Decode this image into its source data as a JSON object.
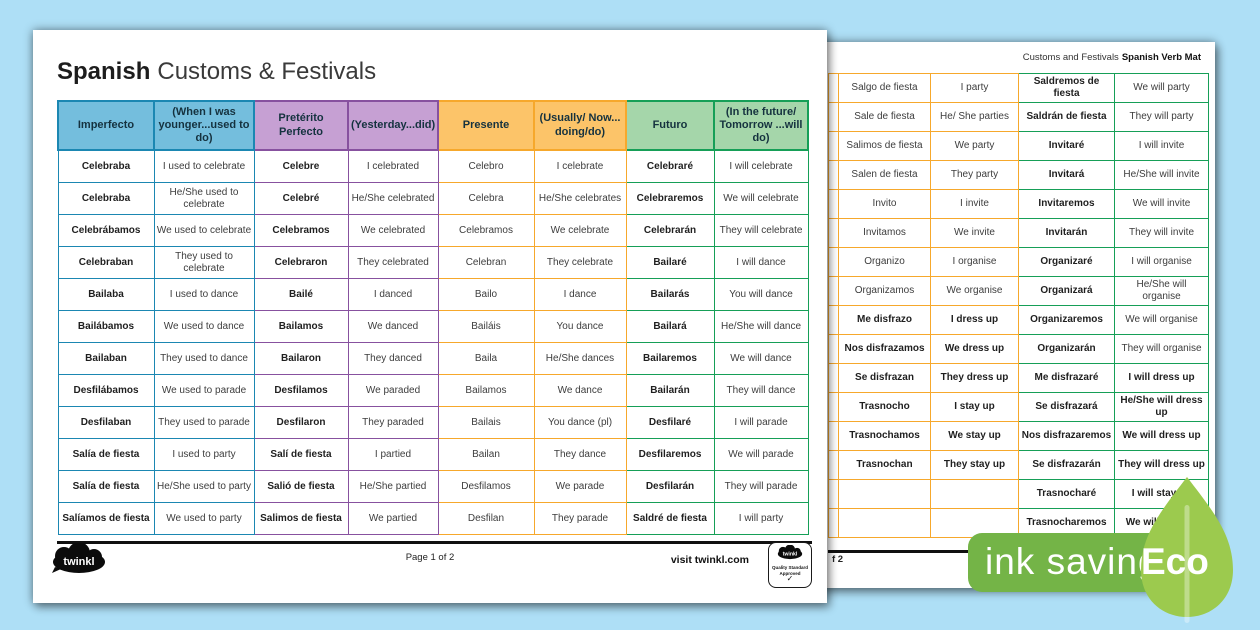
{
  "colors": {
    "background": "#aedff6",
    "blue_fill": "#74bedd",
    "blue_border": "#1b87b2",
    "purple_fill": "#c6a0d3",
    "purple_border": "#87519f",
    "orange_fill": "#fcc469",
    "orange_border": "#f6a82c",
    "green_fill": "#a5d6aa",
    "green_border": "#169f57",
    "badge_green": "#74b447",
    "leaf_green": "#9cca4e"
  },
  "page1": {
    "title": {
      "bold": "Spanish",
      "regular": "Customs & Festivals"
    },
    "table": {
      "headers": [
        {
          "label": "Imperfecto",
          "group": "blue"
        },
        {
          "label": "(When I was younger...used to do)",
          "group": "blue"
        },
        {
          "label": "Pretérito Perfecto",
          "group": "purple"
        },
        {
          "label": "(Yesterday...did)",
          "group": "purple"
        },
        {
          "label": "Presente",
          "group": "orange"
        },
        {
          "label": "(Usually/ Now... doing/do)",
          "group": "orange"
        },
        {
          "label": "Futuro",
          "group": "green"
        },
        {
          "label": "(In the future/ Tomorrow ...will do)",
          "group": "green"
        }
      ],
      "rows": [
        [
          "Celebraba",
          "I used to celebrate",
          "Celebre",
          "I celebrated",
          "Celebro",
          "I celebrate",
          "Celebraré",
          "I will celebrate"
        ],
        [
          "Celebraba",
          "He/She used to celebrate",
          "Celebré",
          "He/She celebrated",
          "Celebra",
          "He/She celebrates",
          "Celebraremos",
          "We will celebrate"
        ],
        [
          "Celebrábamos",
          "We used to celebrate",
          "Celebramos",
          "We celebrated",
          "Celebramos",
          "We celebrate",
          "Celebrarán",
          "They will celebrate"
        ],
        [
          "Celebraban",
          "They used to celebrate",
          "Celebraron",
          "They celebrated",
          "Celebran",
          "They celebrate",
          "Bailaré",
          "I will dance"
        ],
        [
          "Bailaba",
          "I used to dance",
          "Bailé",
          "I danced",
          "Bailo",
          "I dance",
          "Bailarás",
          "You will dance"
        ],
        [
          "Bailábamos",
          "We used to dance",
          "Bailamos",
          "We danced",
          "Bailáis",
          "You dance",
          "Bailará",
          "He/She will dance"
        ],
        [
          "Bailaban",
          "They used to dance",
          "Bailaron",
          "They danced",
          "Baila",
          "He/She dances",
          "Bailaremos",
          "We will dance"
        ],
        [
          "Desfilábamos",
          "We used to parade",
          "Desfilamos",
          "We paraded",
          "Bailamos",
          "We dance",
          "Bailarán",
          "They will dance"
        ],
        [
          "Desfilaban",
          "They used to parade",
          "Desfilaron",
          "They paraded",
          "Bailais",
          "You dance (pl)",
          "Desfilaré",
          "I will parade"
        ],
        [
          "Salía de fiesta",
          "I used to party",
          "Salí de fiesta",
          "I partied",
          "Bailan",
          "They dance",
          "Desfilaremos",
          "We will parade"
        ],
        [
          "Salía de fiesta",
          "He/She used to party",
          "Salió de fiesta",
          "He/She partied",
          "Desfilamos",
          "We parade",
          "Desfilarán",
          "They will parade"
        ],
        [
          "Salíamos de fiesta",
          "We used to party",
          "Salimos de fiesta",
          "We partied",
          "Desfilan",
          "They parade",
          "Saldré de fiesta",
          "I will party"
        ]
      ]
    },
    "footer": {
      "logo_text": "twinkl",
      "page_label": "Page 1 of 2",
      "visit_label": "visit twinkl.com",
      "badge": {
        "brand": "twinkl",
        "line1": "Quality Standard",
        "line2": "Approved",
        "check": "✓"
      }
    }
  },
  "page2": {
    "header": {
      "regular": "Customs and Festivals",
      "bold": "Spanish Verb Mat"
    },
    "rows": [
      [
        "Salgo de fiesta",
        "I party",
        "Saldremos de fiesta",
        "We will party"
      ],
      [
        "Sale de fiesta",
        "He/ She parties",
        "Saldrán de fiesta",
        "They will party"
      ],
      [
        "Salimos de fiesta",
        "We party",
        "Invitaré",
        "I will invite"
      ],
      [
        "Salen de fiesta",
        "They party",
        "Invitará",
        "He/She will invite"
      ],
      [
        "Invito",
        "I invite",
        "Invitaremos",
        "We will invite"
      ],
      [
        "Invitamos",
        "We invite",
        "Invitarán",
        "They will invite"
      ],
      [
        "Organizo",
        "I organise",
        "Organizaré",
        "I will organise"
      ],
      [
        "Organizamos",
        "We organise",
        "Organizará",
        "He/She will organise"
      ],
      [
        "Me disfrazo",
        "I dress up",
        "Organizaremos",
        "We will organise"
      ],
      [
        "Nos disfrazamos",
        "We dress up",
        "Organizarán",
        "They will organise"
      ],
      [
        "Se disfrazan",
        "They dress up",
        "Me disfrazaré",
        "I will dress up"
      ],
      [
        "Trasnocho",
        "I stay up",
        "Se disfrazará",
        "He/She will dress up"
      ],
      [
        "Trasnochamos",
        "We stay up",
        "Nos disfrazaremos",
        "We will dress up"
      ],
      [
        "Trasnochan",
        "They stay up",
        "Se disfrazarán",
        "They will dress up"
      ],
      [
        "",
        "",
        "Trasnocharé",
        "I will stay up"
      ],
      [
        "",
        "",
        "Trasnocharemos",
        "We will stay up"
      ]
    ],
    "footer_fragment": "f 2"
  },
  "eco_badge": {
    "label": "ink saving",
    "eco": "Eco"
  }
}
